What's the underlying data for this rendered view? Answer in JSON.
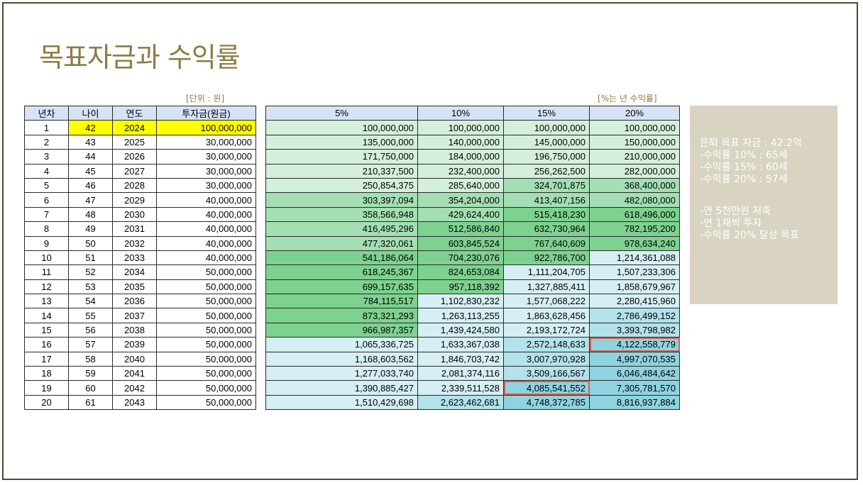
{
  "title": "목표자금과 수익률",
  "unit_left": "[단위 : 원]",
  "unit_right": "[%는 년 수익률]",
  "headers_left": [
    "년차",
    "나이",
    "연도",
    "투자금(원금)"
  ],
  "headers_right": [
    "5%",
    "10%",
    "15%",
    "20%"
  ],
  "rows": [
    {
      "n": "1",
      "age": "42",
      "year": "2024",
      "inv": "100,000,000",
      "r5": "100,000,000",
      "r10": "100,000,000",
      "r15": "100,000,000",
      "r20": "100,000,000"
    },
    {
      "n": "2",
      "age": "43",
      "year": "2025",
      "inv": "30,000,000",
      "r5": "135,000,000",
      "r10": "140,000,000",
      "r15": "145,000,000",
      "r20": "150,000,000"
    },
    {
      "n": "3",
      "age": "44",
      "year": "2026",
      "inv": "30,000,000",
      "r5": "171,750,000",
      "r10": "184,000,000",
      "r15": "196,750,000",
      "r20": "210,000,000"
    },
    {
      "n": "4",
      "age": "45",
      "year": "2027",
      "inv": "30,000,000",
      "r5": "210,337,500",
      "r10": "232,400,000",
      "r15": "256,262,500",
      "r20": "282,000,000"
    },
    {
      "n": "5",
      "age": "46",
      "year": "2028",
      "inv": "30,000,000",
      "r5": "250,854,375",
      "r10": "285,640,000",
      "r15": "324,701,875",
      "r20": "368,400,000"
    },
    {
      "n": "6",
      "age": "47",
      "year": "2029",
      "inv": "40,000,000",
      "r5": "303,397,094",
      "r10": "354,204,000",
      "r15": "413,407,156",
      "r20": "482,080,000"
    },
    {
      "n": "7",
      "age": "48",
      "year": "2030",
      "inv": "40,000,000",
      "r5": "358,566,948",
      "r10": "429,624,400",
      "r15": "515,418,230",
      "r20": "618,496,000"
    },
    {
      "n": "8",
      "age": "49",
      "year": "2031",
      "inv": "40,000,000",
      "r5": "416,495,296",
      "r10": "512,586,840",
      "r15": "632,730,964",
      "r20": "782,195,200"
    },
    {
      "n": "9",
      "age": "50",
      "year": "2032",
      "inv": "40,000,000",
      "r5": "477,320,061",
      "r10": "603,845,524",
      "r15": "767,640,609",
      "r20": "978,634,240"
    },
    {
      "n": "10",
      "age": "51",
      "year": "2033",
      "inv": "40,000,000",
      "r5": "541,186,064",
      "r10": "704,230,076",
      "r15": "922,786,700",
      "r20": "1,214,361,088"
    },
    {
      "n": "11",
      "age": "52",
      "year": "2034",
      "inv": "50,000,000",
      "r5": "618,245,367",
      "r10": "824,653,084",
      "r15": "1,111,204,705",
      "r20": "1,507,233,306"
    },
    {
      "n": "12",
      "age": "53",
      "year": "2035",
      "inv": "50,000,000",
      "r5": "699,157,635",
      "r10": "957,118,392",
      "r15": "1,327,885,411",
      "r20": "1,858,679,967"
    },
    {
      "n": "13",
      "age": "54",
      "year": "2036",
      "inv": "50,000,000",
      "r5": "784,115,517",
      "r10": "1,102,830,232",
      "r15": "1,577,068,222",
      "r20": "2,280,415,960"
    },
    {
      "n": "14",
      "age": "55",
      "year": "2037",
      "inv": "50,000,000",
      "r5": "873,321,293",
      "r10": "1,263,113,255",
      "r15": "1,863,628,456",
      "r20": "2,786,499,152"
    },
    {
      "n": "15",
      "age": "56",
      "year": "2038",
      "inv": "50,000,000",
      "r5": "966,987,357",
      "r10": "1,439,424,580",
      "r15": "2,193,172,724",
      "r20": "3,393,798,982"
    },
    {
      "n": "16",
      "age": "57",
      "year": "2039",
      "inv": "50,000,000",
      "r5": "1,065,336,725",
      "r10": "1,633,367,038",
      "r15": "2,572,148,633",
      "r20": "4,122,558,779"
    },
    {
      "n": "17",
      "age": "58",
      "year": "2040",
      "inv": "50,000,000",
      "r5": "1,168,603,562",
      "r10": "1,846,703,742",
      "r15": "3,007,970,928",
      "r20": "4,997,070,535"
    },
    {
      "n": "18",
      "age": "59",
      "year": "2041",
      "inv": "50,000,000",
      "r5": "1,277,033,740",
      "r10": "2,081,374,116",
      "r15": "3,509,166,567",
      "r20": "6,046,484,642"
    },
    {
      "n": "19",
      "age": "60",
      "year": "2042",
      "inv": "50,000,000",
      "r5": "1,390,885,427",
      "r10": "2,339,511,528",
      "r15": "4,085,541,552",
      "r20": "7,305,781,570"
    },
    {
      "n": "20",
      "age": "61",
      "year": "2043",
      "inv": "50,000,000",
      "r5": "1,510,429,698",
      "r10": "2,623,462,681",
      "r15": "4,748,372,785",
      "r20": "8,816,937,884"
    }
  ],
  "note_lines_1": [
    "은퇴 목표 자금 : 42.2억",
    "-수익률 10% : 65세",
    "-수익률 15% : 60세",
    "-수익률 20% : 57세"
  ],
  "note_lines_2": [
    "-연 5천만원 저축",
    "-연 1채씩 투자",
    "-수익률 20% 달성 목표"
  ],
  "colors": {
    "title": "#8b7d45",
    "header_bg": "#d6e2f5",
    "highlight_yellow": "#ffff00",
    "target_outline": "#e05a4a",
    "note_bg": "#d8d4c1",
    "green_light": "#d4efdc",
    "green_mid": "#a3dfb2",
    "green_strong": "#7ed290",
    "cyan_light": "#d6eff4",
    "cyan_mid": "#b3e2ea",
    "cyan_strong": "#8fd3e0"
  },
  "highlighted_targets": [
    {
      "row": 16,
      "col": "r20"
    },
    {
      "row": 19,
      "col": "r15"
    }
  ]
}
